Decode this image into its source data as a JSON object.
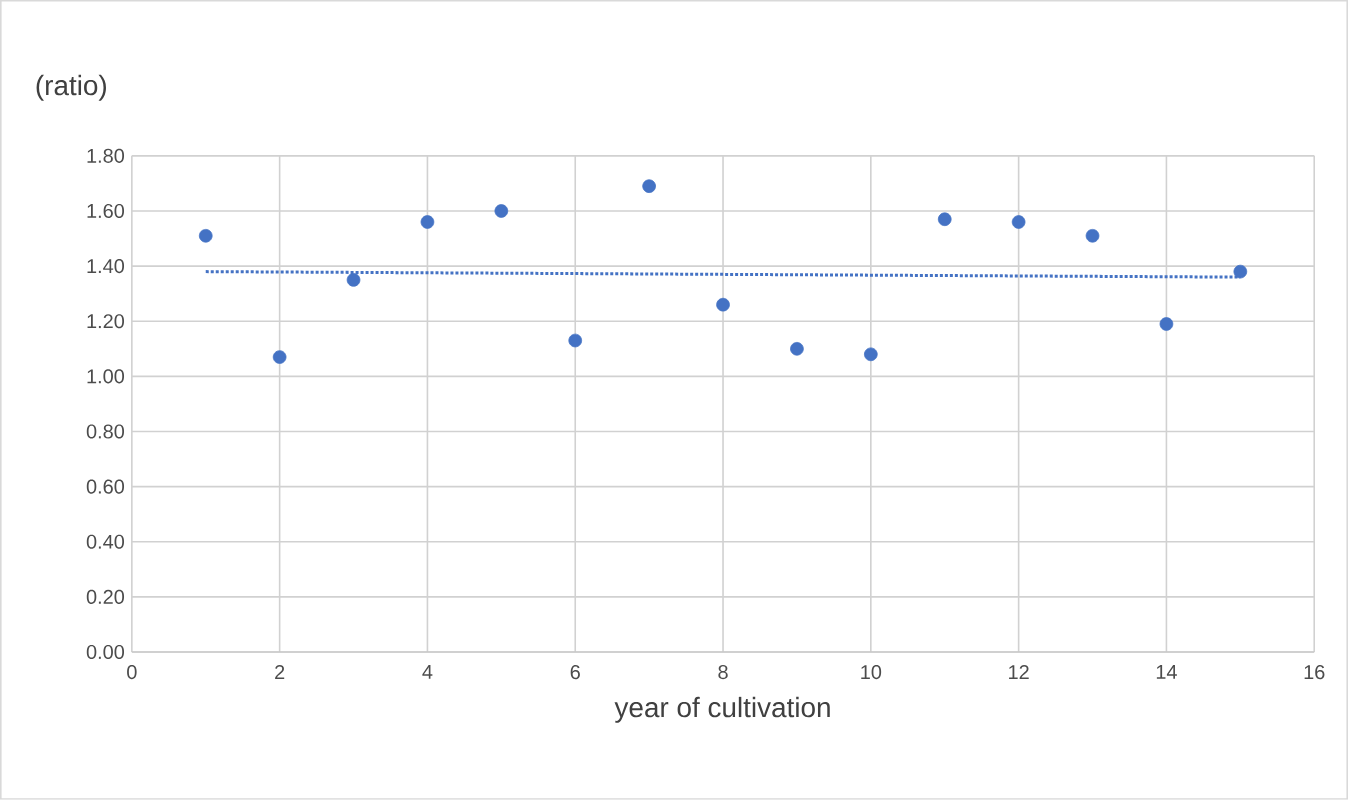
{
  "chart_data": {
    "type": "scatter",
    "ylabel": "(ratio)",
    "xlabel": "year of cultivation",
    "grid": true,
    "marker": "circle",
    "xlim": [
      0,
      16
    ],
    "xticks": [
      0,
      2,
      4,
      6,
      8,
      10,
      12,
      14,
      16
    ],
    "ylim": [
      0,
      1.8
    ],
    "yticks": [
      {
        "value": 0,
        "label": "0.00"
      },
      {
        "value": 0.2,
        "label": "0.20"
      },
      {
        "value": 0.4,
        "label": "0.40"
      },
      {
        "value": 0.6,
        "label": "0.60"
      },
      {
        "value": 0.8,
        "label": "0.80"
      },
      {
        "value": 1.0,
        "label": "1.00"
      },
      {
        "value": 1.2,
        "label": "1.20"
      },
      {
        "value": 1.4,
        "label": "1.40"
      },
      {
        "value": 1.6,
        "label": "1.60"
      },
      {
        "value": 1.8,
        "label": "1.80"
      }
    ],
    "series": [
      {
        "color": "#4472c4",
        "x": [
          1,
          2,
          3,
          4,
          5,
          6,
          7,
          8,
          9,
          10,
          11,
          12,
          13,
          14,
          15
        ],
        "values": [
          1.51,
          1.07,
          1.35,
          1.56,
          1.6,
          1.13,
          1.69,
          1.26,
          1.1,
          1.08,
          1.57,
          1.56,
          1.51,
          1.19,
          1.38
        ]
      },
      {
        "type": "line",
        "color": "#4472c4",
        "line_style": "dotted",
        "marker": "none",
        "x": [
          1,
          15
        ],
        "values": [
          1.38,
          1.36
        ]
      }
    ]
  }
}
